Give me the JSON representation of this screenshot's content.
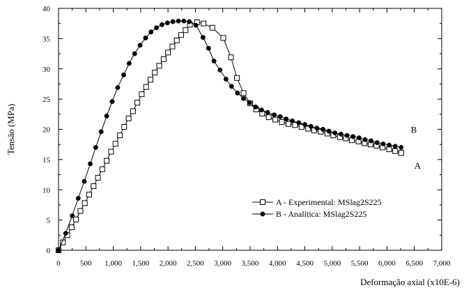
{
  "chart_data": {
    "type": "line",
    "xlabel": "Deformação axial (x10E-6)",
    "ylabel": "Tensão (MPa)",
    "xlim": [
      0,
      7000
    ],
    "ylim": [
      0,
      40
    ],
    "xticks": [
      0,
      500,
      1000,
      1500,
      2000,
      2500,
      3000,
      3500,
      4000,
      4500,
      5000,
      5500,
      6000,
      6500,
      7000
    ],
    "xtick_labels": [
      "0",
      "500",
      "1,000",
      "1,500",
      "2,000",
      "2,500",
      "3,000",
      "3,500",
      "4,000",
      "4,500",
      "5,000",
      "5,500",
      "6,000",
      "6,500",
      "7,000"
    ],
    "yticks": [
      0,
      5,
      10,
      15,
      20,
      25,
      30,
      35,
      40
    ],
    "ytick_labels": [
      "0",
      "5",
      "10",
      "15",
      "20",
      "25",
      "30",
      "35",
      "40"
    ],
    "grid": false,
    "legend_position": "bottom-right",
    "series": [
      {
        "name": "A - Experimental: MSlag2S225",
        "marker": "square-open",
        "color": "#000000",
        "x": [
          0,
          80,
          160,
          240,
          320,
          400,
          480,
          560,
          640,
          720,
          800,
          880,
          960,
          1040,
          1120,
          1200,
          1280,
          1360,
          1440,
          1520,
          1600,
          1680,
          1760,
          1840,
          1920,
          2000,
          2080,
          2160,
          2240,
          2320,
          2400,
          2530,
          2650,
          2810,
          3010,
          3150,
          3260,
          3380,
          3500,
          3610,
          3720,
          3840,
          3960,
          4080,
          4200,
          4320,
          4440,
          4560,
          4670,
          4790,
          4910,
          5020,
          5140,
          5250,
          5360,
          5480,
          5590,
          5700,
          5810,
          5920,
          6040,
          6150,
          6260
        ],
        "y": [
          0,
          1.3,
          2.5,
          3.8,
          5.1,
          6.5,
          7.8,
          9.2,
          10.6,
          12.0,
          13.4,
          14.8,
          16.3,
          17.6,
          19.0,
          20.4,
          21.8,
          23.0,
          24.4,
          25.8,
          27.0,
          28.2,
          29.4,
          30.5,
          31.6,
          32.7,
          33.7,
          34.7,
          35.6,
          36.4,
          37.3,
          37.7,
          37.5,
          36.8,
          35.1,
          31.9,
          28.5,
          26.0,
          24.3,
          23.3,
          22.6,
          22.0,
          21.6,
          21.2,
          20.9,
          20.7,
          20.4,
          20.1,
          19.8,
          19.6,
          19.3,
          19.0,
          18.7,
          18.5,
          18.2,
          18.0,
          17.7,
          17.5,
          17.3,
          17.0,
          16.7,
          16.4,
          16.1
        ]
      },
      {
        "name": "B - Analítica: MSlag2S225",
        "marker": "circle-filled",
        "color": "#000000",
        "x": [
          0,
          130,
          250,
          360,
          470,
          580,
          680,
          780,
          880,
          980,
          1080,
          1190,
          1290,
          1390,
          1490,
          1590,
          1690,
          1790,
          1890,
          1990,
          2090,
          2190,
          2290,
          2390,
          2510,
          2640,
          2740,
          2840,
          2950,
          3060,
          3160,
          3270,
          3380,
          3490,
          3600,
          3710,
          3820,
          3940,
          4050,
          4160,
          4270,
          4390,
          4500,
          4610,
          4720,
          4830,
          4940,
          5050,
          5160,
          5270,
          5380,
          5490,
          5600,
          5710,
          5820,
          5930,
          6040,
          6150,
          6260
        ],
        "y": [
          0,
          2.8,
          5.7,
          8.6,
          11.4,
          14.3,
          17.0,
          19.6,
          22.2,
          24.6,
          26.9,
          29.0,
          30.9,
          32.5,
          33.9,
          35.1,
          36.1,
          36.8,
          37.3,
          37.6,
          37.8,
          37.9,
          37.9,
          37.8,
          37.2,
          35.2,
          33.4,
          31.3,
          29.8,
          28.3,
          27.1,
          26.0,
          25.1,
          24.4,
          23.7,
          23.2,
          22.8,
          22.4,
          22.1,
          21.7,
          21.4,
          21.1,
          20.8,
          20.5,
          20.2,
          20.0,
          19.7,
          19.4,
          19.2,
          19.0,
          18.8,
          18.6,
          18.3,
          18.1,
          17.8,
          17.6,
          17.4,
          17.2,
          17.0
        ]
      }
    ],
    "annotations": [
      {
        "text": "A",
        "x": 6560,
        "y": 13.5
      },
      {
        "text": "B",
        "x": 6490,
        "y": 19.4
      }
    ]
  }
}
